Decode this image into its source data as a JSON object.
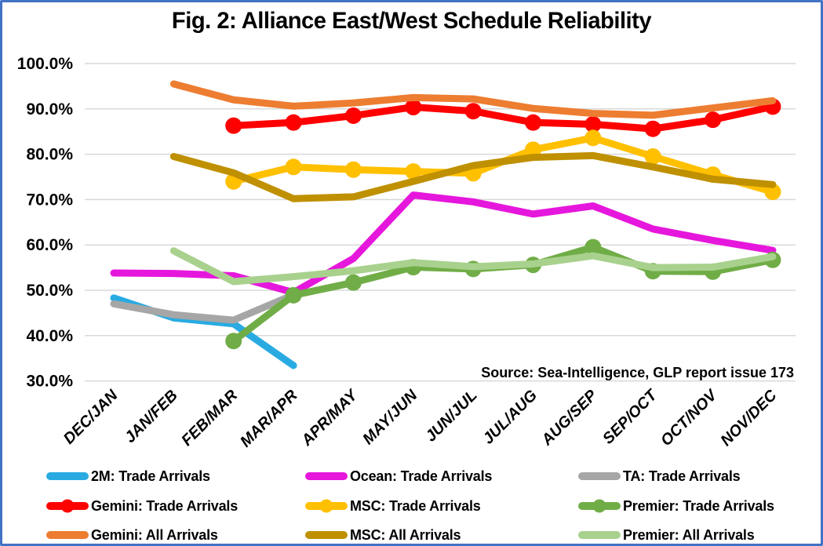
{
  "title": "Fig. 2: Alliance East/West Schedule Reliability",
  "source_note": "Source: Sea-Intelligence, GLP report issue 173",
  "colors": {
    "frame_border": "#4472C4",
    "gridline": "#D9D9D9",
    "text": "#000000",
    "background": "#FFFFFF"
  },
  "y_axis": {
    "tick_labels": [
      "100.0%",
      "90.0%",
      "80.0%",
      "70.0%",
      "60.0%",
      "50.0%",
      "40.0%",
      "30.0%"
    ]
  },
  "chart_data": {
    "type": "line",
    "title": "Fig. 2: Alliance East/West Schedule Reliability",
    "xlabel": "",
    "ylabel": "",
    "unit": "%",
    "ylim": [
      30,
      100
    ],
    "ytick_step": 10,
    "grid": "horizontal",
    "legend_position": "bottom",
    "categories": [
      "DEC/JAN",
      "JAN/FEB",
      "FEB/MAR",
      "MAR/APR",
      "APR/MAY",
      "MAY/JUN",
      "JUN/JUL",
      "JUL/AUG",
      "AUG/SEP",
      "SEP/OCT",
      "OCT/NOV",
      "NOV/DEC"
    ],
    "series": [
      {
        "name": "2M: Trade Arrivals",
        "color": "#29ABE2",
        "marker": false,
        "values": [
          48.3,
          43.9,
          42.6,
          33.4,
          null,
          null,
          null,
          null,
          null,
          null,
          null,
          null
        ]
      },
      {
        "name": "Ocean: Trade Arrivals",
        "color": "#E617DC",
        "marker": false,
        "values": [
          53.8,
          53.7,
          53.2,
          49.5,
          57.0,
          71.0,
          69.5,
          66.8,
          68.6,
          63.5,
          61.0,
          58.8
        ]
      },
      {
        "name": "TA: Trade Arrivals",
        "color": "#A6A6A6",
        "marker": false,
        "values": [
          47.0,
          44.6,
          43.4,
          49.0,
          null,
          null,
          null,
          null,
          null,
          null,
          null,
          null
        ]
      },
      {
        "name": "Gemini: Trade Arrivals",
        "color": "#FF0000",
        "marker": true,
        "values": [
          null,
          null,
          86.3,
          87.0,
          88.5,
          90.4,
          89.5,
          87.0,
          86.6,
          85.6,
          87.6,
          90.5
        ]
      },
      {
        "name": "MSC: Trade Arrivals",
        "color": "#FFC000",
        "marker": true,
        "values": [
          null,
          null,
          74.0,
          77.2,
          76.6,
          76.2,
          75.8,
          81.0,
          83.6,
          79.5,
          75.5,
          71.7
        ]
      },
      {
        "name": "Premier: Trade Arrivals",
        "color": "#70AD47",
        "marker": true,
        "values": [
          null,
          null,
          38.8,
          48.9,
          51.7,
          55.1,
          54.7,
          55.6,
          59.5,
          54.2,
          54.1,
          56.7
        ]
      },
      {
        "name": "Gemini: All Arrivals",
        "color": "#ED7D31",
        "marker": false,
        "values": [
          null,
          95.5,
          92.0,
          90.6,
          91.3,
          92.5,
          92.2,
          90.1,
          89.0,
          88.6,
          90.2,
          91.8
        ]
      },
      {
        "name": "MSC: All Arrivals",
        "color": "#BF9000",
        "marker": false,
        "values": [
          null,
          79.5,
          75.9,
          70.2,
          70.6,
          74.0,
          77.5,
          79.3,
          79.7,
          77.2,
          74.5,
          73.3
        ]
      },
      {
        "name": "Premier: All Arrivals",
        "color": "#A9D18E",
        "marker": false,
        "values": [
          null,
          58.7,
          51.9,
          53.0,
          54.3,
          56.1,
          55.2,
          55.8,
          57.6,
          55.0,
          55.1,
          57.4
        ]
      }
    ]
  }
}
